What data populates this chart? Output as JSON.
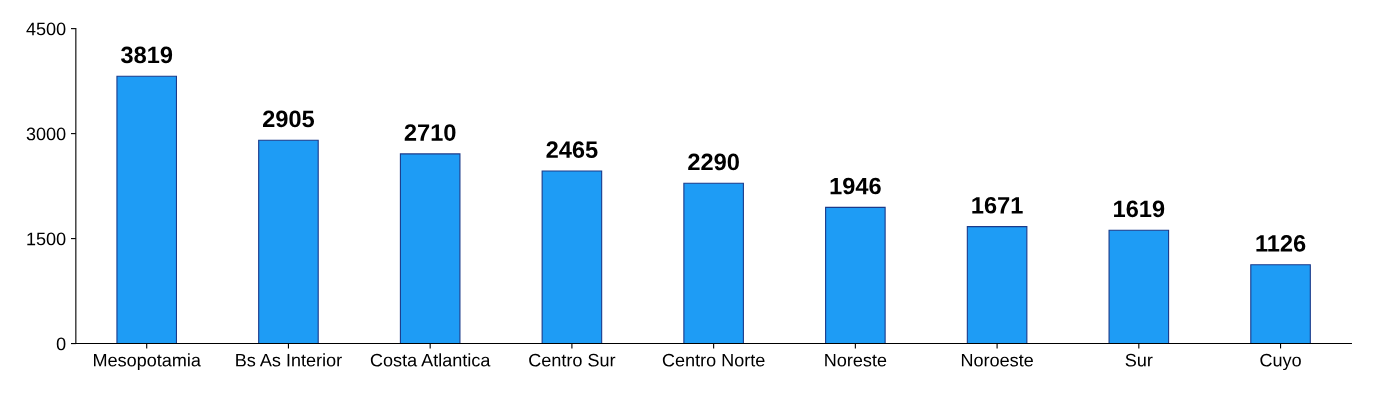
{
  "chart_data": {
    "type": "bar",
    "categories": [
      "Mesopotamia",
      "Bs As Interior",
      "Costa Atlantica",
      "Centro Sur",
      "Centro Norte",
      "Noreste",
      "Noroeste",
      "Sur",
      "Cuyo"
    ],
    "values": [
      3819,
      2905,
      2710,
      2465,
      2290,
      1946,
      1671,
      1619,
      1126
    ],
    "color": "#1e9cf5",
    "ylim": [
      0,
      4500
    ],
    "yticks": [
      0,
      1500,
      3000,
      4500
    ],
    "data_labels": true,
    "grid": false
  }
}
